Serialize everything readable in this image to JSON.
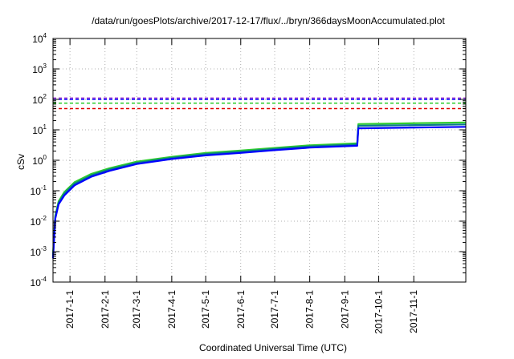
{
  "chart_data": {
    "type": "line",
    "title": "/data/run/goesPlots/archive/2017-12-17/flux/../bryn/366daysMoonAccumulated.plot",
    "xlabel": "Coordinated Universal Time (UTC)",
    "ylabel": "cSv",
    "yscale": "log",
    "ylim_exponents": [
      -4,
      4
    ],
    "y_ticks": [
      {
        "base": "10",
        "exp": "4"
      },
      {
        "base": "10",
        "exp": "3"
      },
      {
        "base": "10",
        "exp": "2"
      },
      {
        "base": "10",
        "exp": "1"
      },
      {
        "base": "10",
        "exp": "0"
      },
      {
        "base": "10",
        "exp": "-1"
      },
      {
        "base": "10",
        "exp": "-2"
      },
      {
        "base": "10",
        "exp": "-3"
      },
      {
        "base": "10",
        "exp": "-4"
      }
    ],
    "xlim": [
      "2016-12-17",
      "2017-12-17"
    ],
    "x_ticks": [
      "2017-1-1",
      "2017-2-1",
      "2017-3-1",
      "2017-4-1",
      "2017-5-1",
      "2017-6-1",
      "2017-7-1",
      "2017-8-1",
      "2017-9-1",
      "2017-10-1",
      "2017-11-1"
    ],
    "grid": true,
    "series": [
      {
        "color": "#2ecc2e",
        "points": [
          [
            "2016-12-17",
            0.0008
          ],
          [
            "2016-12-19",
            0.015
          ],
          [
            "2016-12-22",
            0.045
          ],
          [
            "2016-12-27",
            0.09
          ],
          [
            "2017-01-05",
            0.19
          ],
          [
            "2017-01-20",
            0.36
          ],
          [
            "2017-02-05",
            0.55
          ],
          [
            "2017-03-01",
            0.9
          ],
          [
            "2017-04-01",
            1.3
          ],
          [
            "2017-05-01",
            1.75
          ],
          [
            "2017-06-01",
            2.1
          ],
          [
            "2017-07-01",
            2.55
          ],
          [
            "2017-08-01",
            3.1
          ],
          [
            "2017-09-12",
            3.6
          ],
          [
            "2017-09-13",
            15.5
          ],
          [
            "2017-12-17",
            17.5
          ]
        ]
      },
      {
        "color": "#0a7a8a",
        "points": [
          [
            "2016-12-17",
            0.0007
          ],
          [
            "2016-12-19",
            0.013
          ],
          [
            "2016-12-22",
            0.04
          ],
          [
            "2016-12-27",
            0.08
          ],
          [
            "2017-01-05",
            0.17
          ],
          [
            "2017-01-20",
            0.32
          ],
          [
            "2017-02-05",
            0.5
          ],
          [
            "2017-03-01",
            0.82
          ],
          [
            "2017-04-01",
            1.2
          ],
          [
            "2017-05-01",
            1.6
          ],
          [
            "2017-06-01",
            1.9
          ],
          [
            "2017-07-01",
            2.35
          ],
          [
            "2017-08-01",
            2.85
          ],
          [
            "2017-09-12",
            3.3
          ],
          [
            "2017-09-13",
            13.5
          ],
          [
            "2017-12-17",
            15
          ]
        ]
      },
      {
        "color": "#0000ff",
        "points": [
          [
            "2016-12-17",
            0.0006
          ],
          [
            "2016-12-19",
            0.012
          ],
          [
            "2016-12-22",
            0.036
          ],
          [
            "2016-12-27",
            0.07
          ],
          [
            "2017-01-05",
            0.15
          ],
          [
            "2017-01-20",
            0.29
          ],
          [
            "2017-02-05",
            0.45
          ],
          [
            "2017-03-01",
            0.75
          ],
          [
            "2017-04-01",
            1.1
          ],
          [
            "2017-05-01",
            1.45
          ],
          [
            "2017-06-01",
            1.75
          ],
          [
            "2017-07-01",
            2.15
          ],
          [
            "2017-08-01",
            2.6
          ],
          [
            "2017-09-12",
            3.0
          ],
          [
            "2017-09-13",
            11.2
          ],
          [
            "2017-12-17",
            12.5
          ]
        ]
      }
    ],
    "reference_lines": [
      {
        "value": 110,
        "color": "#9b30d0",
        "style": "dashed"
      },
      {
        "value": 100,
        "color": "#0000ff",
        "style": "dashed"
      },
      {
        "value": 75,
        "color": "#2ecc2e",
        "style": "dashed"
      },
      {
        "value": 50,
        "color": "#e00000",
        "style": "dashed"
      }
    ]
  }
}
